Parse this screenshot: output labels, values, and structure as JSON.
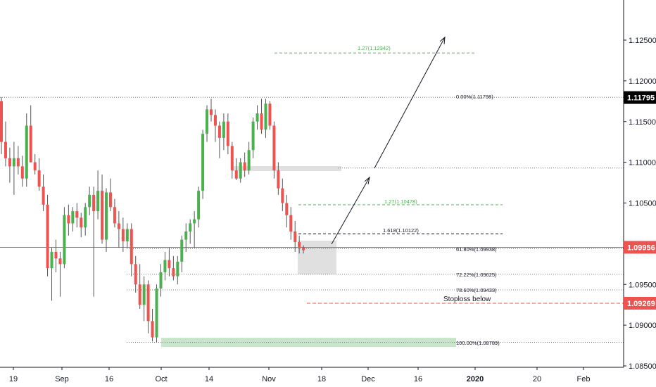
{
  "chart_data": {
    "type": "candlestick",
    "y_range": [
      1.0842,
      1.1297
    ],
    "y_ticks": [
      "1.12500",
      "1.12000",
      "1.11500",
      "1.11000",
      "1.10500",
      "1.09500",
      "1.09000",
      "1.08500"
    ],
    "x_ticks": [
      "19",
      "Sep",
      "16",
      "Oct",
      "14",
      "Nov",
      "18",
      "Dec",
      "16",
      "2020",
      "20",
      "Feb"
    ],
    "price_tags": [
      {
        "text": "1.11795",
        "value": 1.11795,
        "bg": "#000000",
        "fg": "#ffffff"
      },
      {
        "text": "1.09956",
        "value": 1.09956,
        "bg": "#ef5350",
        "fg": "#ffffff"
      },
      {
        "text": "1.09269",
        "value": 1.09269,
        "bg": "#ef5350",
        "fg": "#ffffff"
      }
    ],
    "fib_levels": [
      {
        "label": "0.00%(1.11798)",
        "value": 1.11798
      },
      {
        "label": "61.80%(1.09938)",
        "value": 1.09938
      },
      {
        "label": "72.22%(1.09625)",
        "value": 1.09625
      },
      {
        "label": "78.60%(1.09433)",
        "value": 1.09433
      },
      {
        "label": "100.00%(1.08789)",
        "value": 1.08789
      }
    ],
    "extension_levels": [
      {
        "label": "1.27(1.12342)",
        "value": 1.12342,
        "color": "#4caf50"
      },
      {
        "label": "1.27(1.10478)",
        "value": 1.10478,
        "color": "#4caf50"
      },
      {
        "label": "1.618(1.10122)",
        "value": 1.10122,
        "color": "#131722"
      }
    ],
    "stoploss": {
      "label": "Stoploss below",
      "value": 1.09269
    },
    "colors": {
      "up": "#4caf50",
      "down": "#ef5350",
      "axis": "#131722",
      "zone": "#e0e0e0",
      "target_zone": "#c8e6c9"
    },
    "candles": [
      [
        1.1175,
        1.118,
        1.111,
        1.1125
      ],
      [
        1.1125,
        1.115,
        1.1095,
        1.1105
      ],
      [
        1.1105,
        1.1118,
        1.1075,
        1.1095
      ],
      [
        1.1095,
        1.1125,
        1.106,
        1.1105
      ],
      [
        1.1105,
        1.112,
        1.1085,
        1.1095
      ],
      [
        1.1095,
        1.1108,
        1.107,
        1.108
      ],
      [
        1.108,
        1.116,
        1.107,
        1.1145
      ],
      [
        1.1145,
        1.117,
        1.11,
        1.11
      ],
      [
        1.11,
        1.111,
        1.1085,
        1.109
      ],
      [
        1.109,
        1.1105,
        1.1065,
        1.107
      ],
      [
        1.107,
        1.1085,
        1.104,
        1.1048
      ],
      [
        1.1048,
        1.106,
        1.096,
        1.097
      ],
      [
        1.097,
        1.0995,
        1.093,
        1.099
      ],
      [
        1.099,
        1.1005,
        1.0965,
        1.0982
      ],
      [
        1.0982,
        1.099,
        1.0935,
        1.0975
      ],
      [
        1.0975,
        1.1045,
        1.097,
        1.1035
      ],
      [
        1.1035,
        1.1048,
        1.101,
        1.1025
      ],
      [
        1.1025,
        1.1045,
        1.1015,
        1.104
      ],
      [
        1.104,
        1.105,
        1.102,
        1.1032
      ],
      [
        1.1032,
        1.1038,
        1.1008,
        1.102
      ],
      [
        1.102,
        1.105,
        1.101,
        1.1045
      ],
      [
        1.1045,
        1.107,
        1.1035,
        1.106
      ],
      [
        1.106,
        1.107,
        1.0935,
        1.104
      ],
      [
        1.104,
        1.109,
        1.103,
        1.1065
      ],
      [
        1.1065,
        1.1085,
        1.1,
        1.1005
      ],
      [
        1.1005,
        1.1068,
        1.099,
        1.1063
      ],
      [
        1.1063,
        1.108,
        1.104,
        1.1045
      ],
      [
        1.1045,
        1.1055,
        1.102,
        1.1025
      ],
      [
        1.1025,
        1.104,
        1.0995,
        1.1018
      ],
      [
        1.1018,
        1.1032,
        1.099,
        1.1003
      ],
      [
        1.1003,
        1.1025,
        1.0995,
        1.1018
      ],
      [
        1.1018,
        1.1025,
        1.096,
        1.0975
      ],
      [
        1.0975,
        1.0985,
        1.094,
        1.095
      ],
      [
        1.095,
        1.0975,
        1.092,
        1.0925
      ],
      [
        1.0925,
        1.096,
        1.0905,
        1.095
      ],
      [
        1.095,
        1.0955,
        1.089,
        1.0905
      ],
      [
        1.0905,
        1.092,
        1.088,
        1.0885
      ],
      [
        1.0885,
        1.095,
        1.0879,
        1.0945
      ],
      [
        1.0945,
        1.0975,
        1.0935,
        1.0965
      ],
      [
        1.0965,
        1.099,
        1.0955,
        1.098
      ],
      [
        1.098,
        1.0995,
        1.096,
        1.097
      ],
      [
        1.097,
        1.0985,
        1.0955,
        1.096
      ],
      [
        1.096,
        1.0985,
        1.095,
        1.0978
      ],
      [
        1.0978,
        1.101,
        1.0965,
        1.1005
      ],
      [
        1.1005,
        1.1025,
        1.099,
        1.1015
      ],
      [
        1.1015,
        1.103,
        1.1,
        1.1025
      ],
      [
        1.1025,
        1.104,
        1.0995,
        1.103
      ],
      [
        1.103,
        1.107,
        1.102,
        1.1065
      ],
      [
        1.1065,
        1.114,
        1.1055,
        1.1135
      ],
      [
        1.1135,
        1.117,
        1.1125,
        1.1165
      ],
      [
        1.1165,
        1.1178,
        1.115,
        1.1158
      ],
      [
        1.1158,
        1.1165,
        1.1125,
        1.1145
      ],
      [
        1.1145,
        1.115,
        1.1105,
        1.113
      ],
      [
        1.113,
        1.116,
        1.1115,
        1.115
      ],
      [
        1.115,
        1.116,
        1.111,
        1.112
      ],
      [
        1.112,
        1.1125,
        1.108,
        1.109
      ],
      [
        1.109,
        1.1105,
        1.1078,
        1.108
      ],
      [
        1.108,
        1.1105,
        1.1075,
        1.11
      ],
      [
        1.11,
        1.1112,
        1.1082,
        1.109
      ],
      [
        1.109,
        1.1125,
        1.1085,
        1.1115
      ],
      [
        1.1115,
        1.1155,
        1.1105,
        1.115
      ],
      [
        1.115,
        1.117,
        1.114,
        1.116
      ],
      [
        1.116,
        1.1178,
        1.1135,
        1.114
      ],
      [
        1.114,
        1.1178,
        1.113,
        1.1172
      ],
      [
        1.1172,
        1.1175,
        1.114,
        1.1145
      ],
      [
        1.1145,
        1.115,
        1.108,
        1.109
      ],
      [
        1.109,
        1.11,
        1.106,
        1.1068
      ],
      [
        1.1068,
        1.108,
        1.104,
        1.105
      ],
      [
        1.105,
        1.106,
        1.102,
        1.1035
      ],
      [
        1.1035,
        1.1045,
        1.1005,
        1.1015
      ],
      [
        1.1015,
        1.1028,
        1.099,
        1.1002
      ],
      [
        1.1002,
        1.101,
        1.0988,
        1.0995
      ],
      [
        1.0995,
        1.0998,
        1.0988,
        1.0992
      ]
    ]
  }
}
